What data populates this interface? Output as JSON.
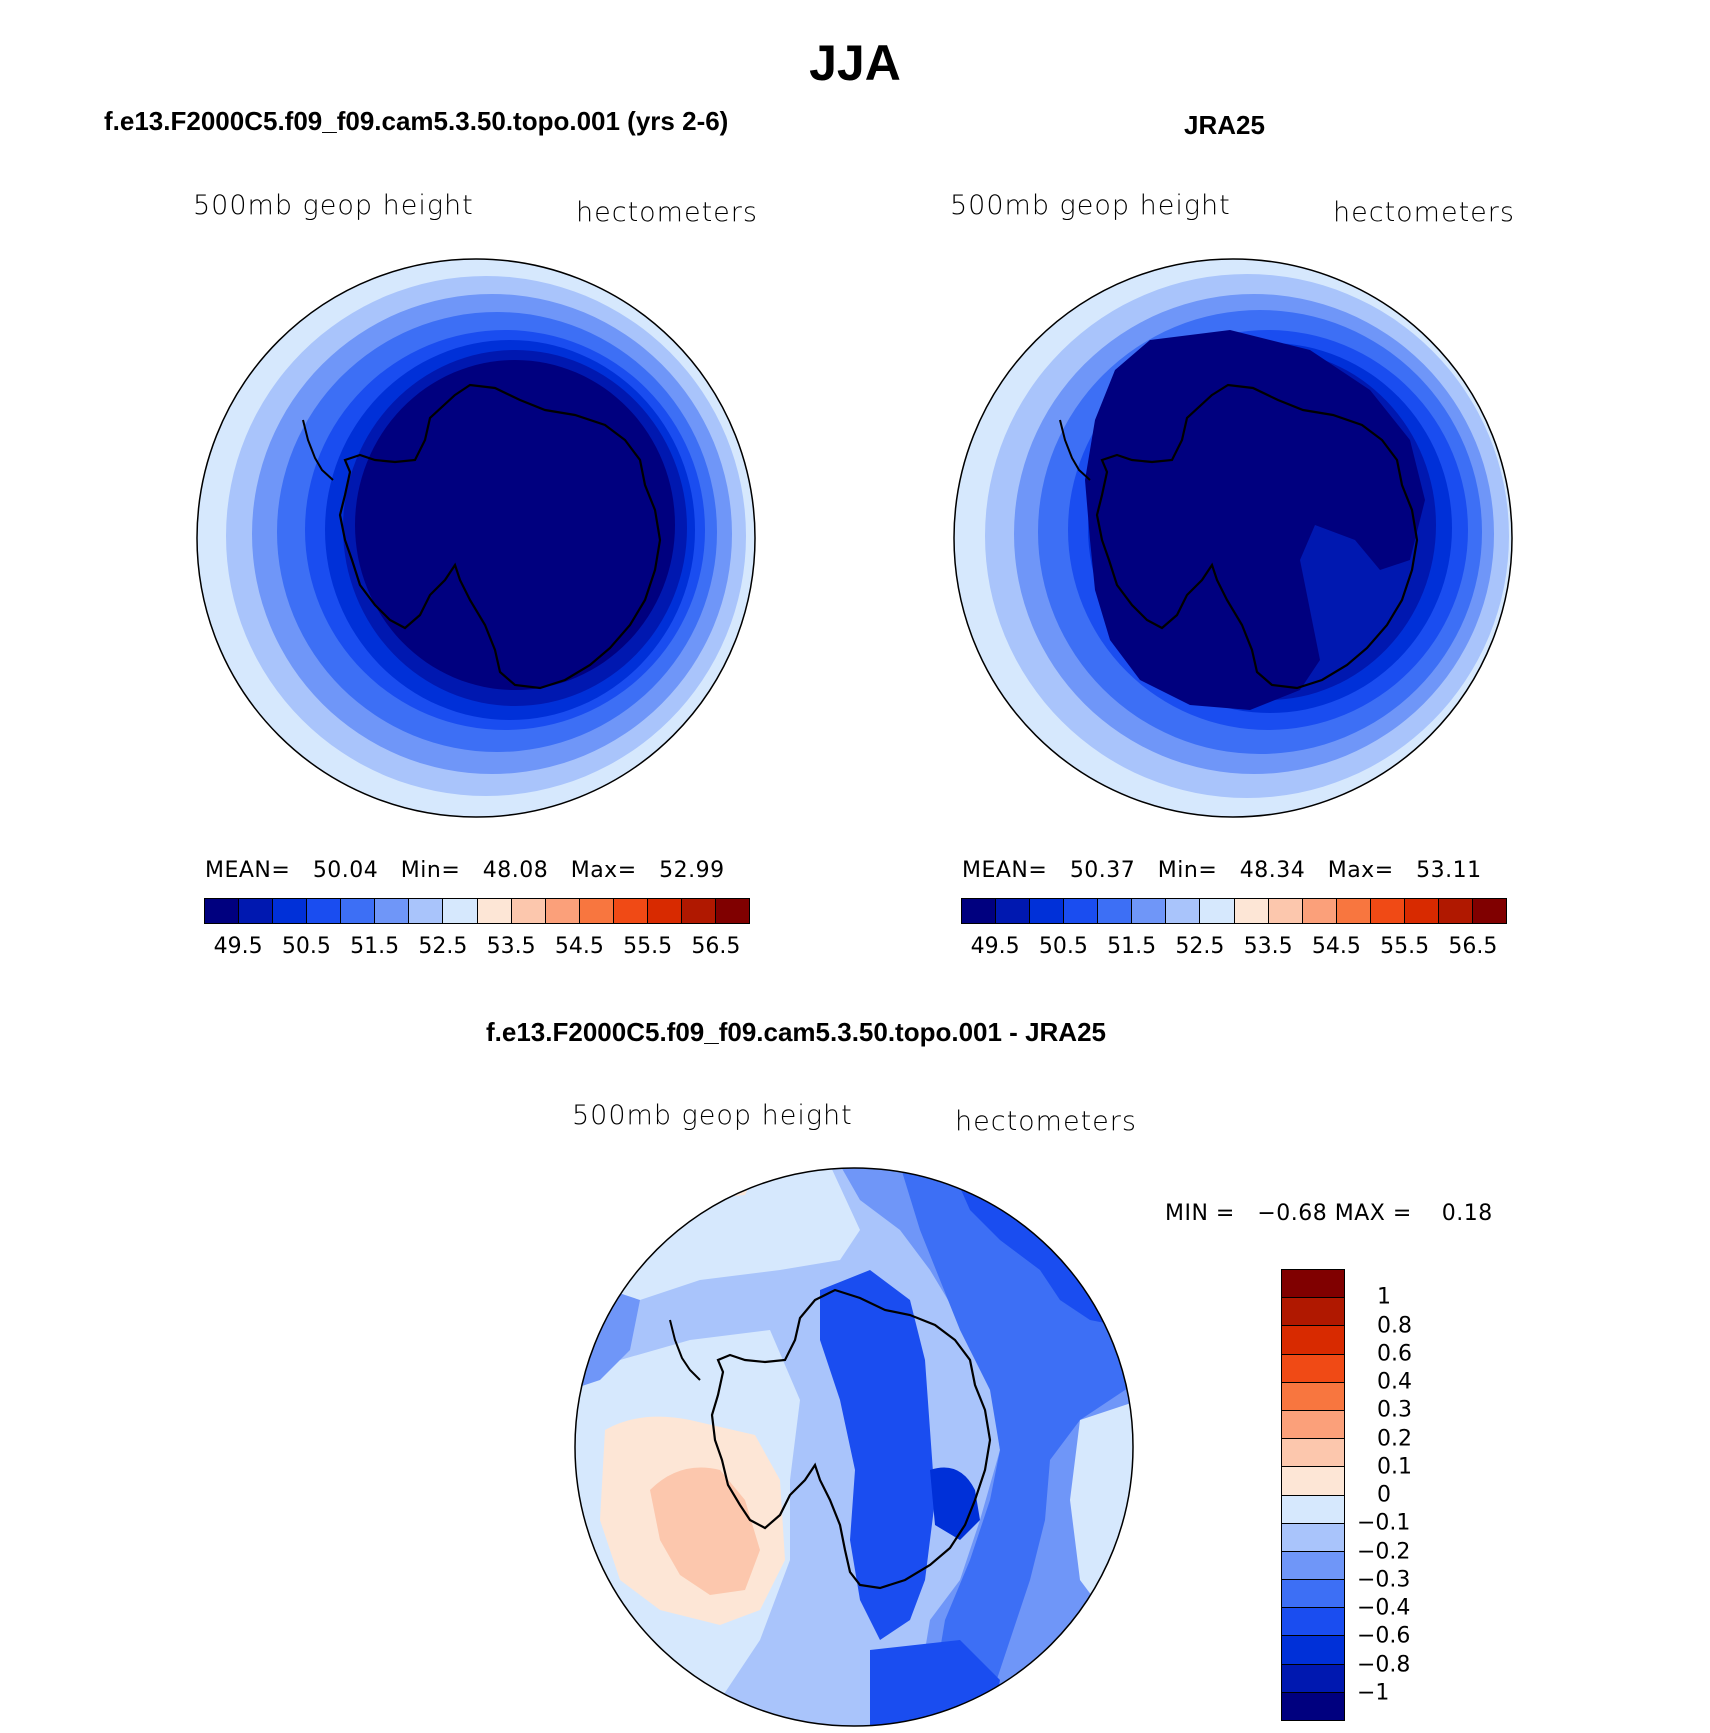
{
  "figure": {
    "title": "JJA"
  },
  "panels": {
    "model": {
      "title": "f.e13.F2000C5.f09_f09.cam5.3.50.topo.001 (yrs 2-6)",
      "variable": "500mb  geop  height",
      "units": "hectometers",
      "mean_label": "MEAN=",
      "mean": "50.04",
      "min_label": "Min=",
      "min": "48.08",
      "max_label": "Max=",
      "max": "52.99"
    },
    "obs": {
      "title": "JRA25",
      "variable": "500mb  geop  height",
      "units": "hectometers",
      "mean_label": "MEAN=",
      "mean": "50.37",
      "min_label": "Min=",
      "min": "48.34",
      "max_label": "Max=",
      "max": "53.11"
    },
    "diff": {
      "title": "f.e13.F2000C5.f09_f09.cam5.3.50.topo.001 - JRA25",
      "variable": "500mb  geop  height",
      "units": "hectometers",
      "min_label": "MIN =",
      "min": "−0.68",
      "max_label": "MAX =",
      "max": "0.18"
    }
  },
  "colorbar_abs": {
    "colors": [
      "#00007f",
      "#0018b0",
      "#0030d8",
      "#1a4df0",
      "#3d6ff5",
      "#6f96f8",
      "#a9c4fb",
      "#d6e8fd",
      "#fde6d6",
      "#fcc7ad",
      "#fba07a",
      "#f8763f",
      "#f04a15",
      "#d82a00",
      "#b01800",
      "#800000"
    ],
    "labels": [
      "49.5",
      "50.5",
      "51.5",
      "52.5",
      "53.5",
      "54.5",
      "55.5",
      "56.5"
    ]
  },
  "colorbar_diff": {
    "colors": [
      "#800000",
      "#b01800",
      "#d82a00",
      "#f04a15",
      "#f8763f",
      "#fba07a",
      "#fcc7ad",
      "#fde6d6",
      "#d6e8fd",
      "#a9c4fb",
      "#6f96f8",
      "#3d6ff5",
      "#1a4df0",
      "#0030d8",
      "#0018b0",
      "#00007f"
    ],
    "labels": [
      "1",
      "0.8",
      "0.6",
      "0.4",
      "0.3",
      "0.2",
      "0.1",
      "0",
      "−0.1",
      "−0.2",
      "−0.3",
      "−0.4",
      "−0.6",
      "−0.8",
      "−1"
    ]
  },
  "map_fields": {
    "model_levels": [
      "#d6e8fd",
      "#a9c4fb",
      "#6f96f8",
      "#3d6ff5",
      "#1a4df0",
      "#0030d8",
      "#0018b0",
      "#00007f"
    ],
    "obs_levels": [
      "#d6e8fd",
      "#a9c4fb",
      "#6f96f8",
      "#3d6ff5",
      "#1a4df0",
      "#0030d8",
      "#0018b0",
      "#00007f"
    ],
    "diff_base": "#a9c4fb"
  }
}
